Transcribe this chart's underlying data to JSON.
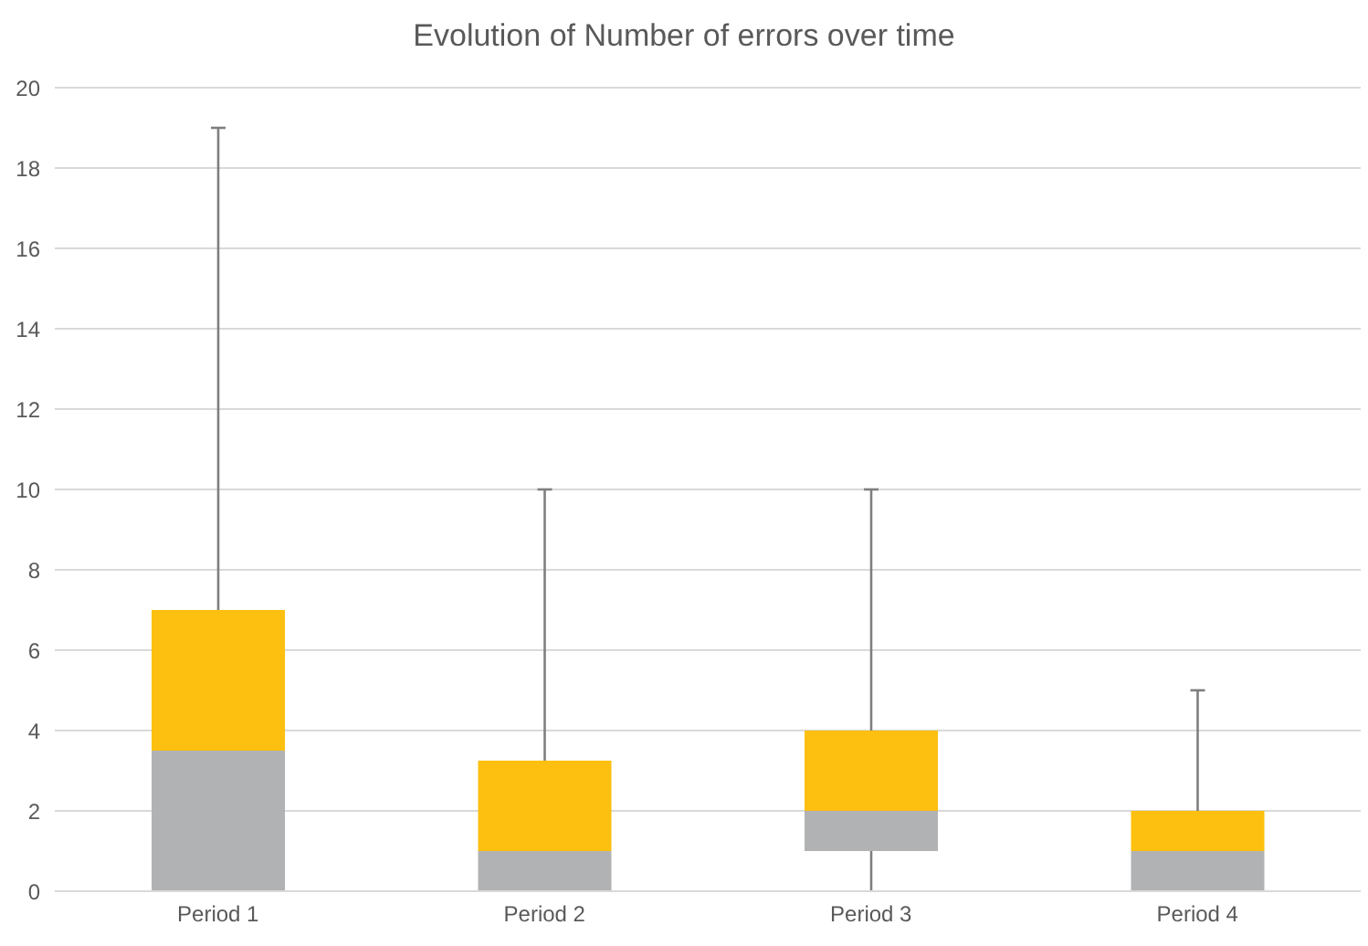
{
  "chart_data": {
    "type": "box",
    "title": "Evolution of Number of errors over time",
    "categories": [
      "Period 1",
      "Period 2",
      "Period 3",
      "Period 4"
    ],
    "series": [
      {
        "color": "#b1b2b4",
        "boxes": [
          {
            "low": 0,
            "q1": 0,
            "median": 3.5,
            "q3": 7,
            "high": 19
          },
          {
            "low": 0,
            "q1": 0,
            "median": 1,
            "q3": 3.25,
            "high": 10
          },
          {
            "low": 0,
            "q1": 1,
            "median": 2,
            "q3": 4,
            "high": 10
          },
          {
            "low": 0,
            "q1": 0,
            "median": 1,
            "q3": 2,
            "high": 5
          }
        ]
      }
    ],
    "ylim": [
      0,
      20
    ],
    "yticks": [
      0,
      2,
      4,
      6,
      8,
      10,
      12,
      14,
      16,
      18,
      20
    ],
    "grid": "y",
    "legend": false
  }
}
